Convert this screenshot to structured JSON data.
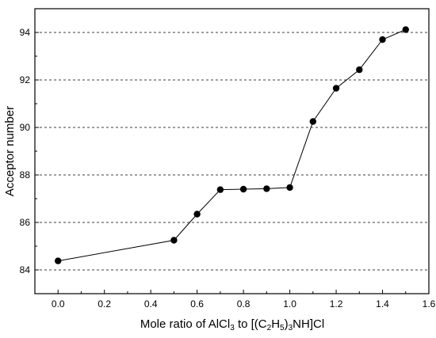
{
  "chart_data": {
    "type": "line",
    "title": "",
    "xlabel": "Mole ratio of AlCl3 to [(C2H5)3NH]Cl",
    "ylabel": "Acceptor number",
    "xlim": [
      -0.1,
      1.6
    ],
    "ylim": [
      83.0,
      95.0
    ],
    "xticks": [
      0.0,
      0.2,
      0.4,
      0.6,
      0.8,
      1.0,
      1.2,
      1.4,
      1.6
    ],
    "xtick_labels": [
      "0.0",
      "0.2",
      "0.4",
      "0.6",
      "0.8",
      "1.0",
      "1.2",
      "1.4",
      "1.6"
    ],
    "yticks": [
      84,
      86,
      88,
      90,
      92,
      94
    ],
    "ytick_labels": [
      "84",
      "86",
      "88",
      "90",
      "92",
      "94"
    ],
    "grid": "horizontal dashed at y ticks",
    "legend": "none",
    "series": [
      {
        "x": [
          0.0,
          0.5,
          0.6,
          0.7,
          0.8,
          0.9,
          1.0,
          1.1,
          1.2,
          1.3,
          1.4,
          1.5
        ],
        "y": [
          84.38,
          85.25,
          86.35,
          87.38,
          87.4,
          87.42,
          87.47,
          90.25,
          91.65,
          92.43,
          93.7,
          94.12
        ],
        "marker": "filled-circle",
        "color": "#000000"
      }
    ]
  }
}
